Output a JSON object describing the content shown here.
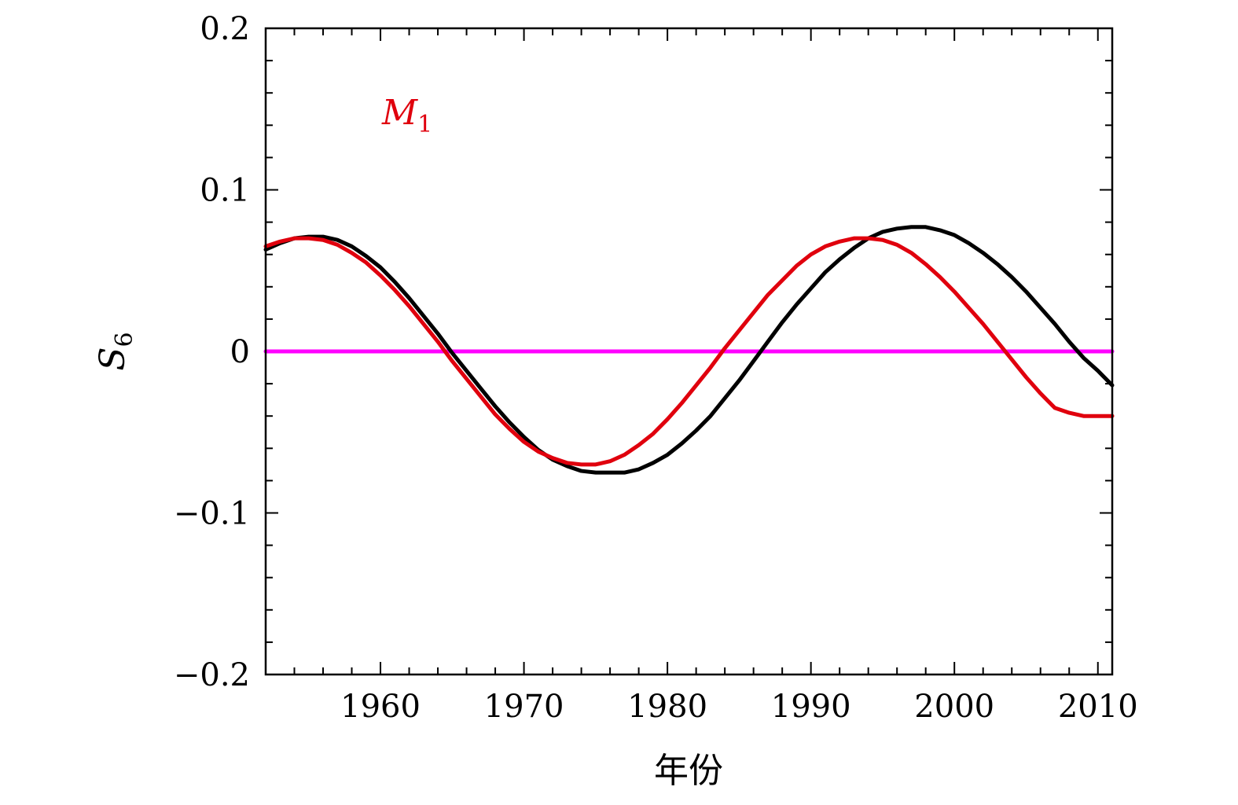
{
  "chart_data": {
    "type": "line",
    "title": "",
    "xlabel": "年份",
    "ylabel": {
      "main": "S",
      "sub": "6"
    },
    "xlim": [
      1952,
      2011
    ],
    "ylim": [
      -0.2,
      0.2
    ],
    "xticks": [
      1960,
      1970,
      1980,
      1990,
      2000,
      2010
    ],
    "yticks": [
      {
        "value": 0.2,
        "label": "0.2"
      },
      {
        "value": 0.1,
        "label": "0.1"
      },
      {
        "value": 0,
        "label": "0"
      },
      {
        "value": -0.1,
        "label": "−0.1"
      },
      {
        "value": -0.2,
        "label": "−0.2"
      }
    ],
    "annotation": {
      "text": "M",
      "sub": "1",
      "color": "#e0000d"
    },
    "series": [
      {
        "color": "#000000",
        "x": [
          1952,
          1953,
          1954,
          1955,
          1956,
          1957,
          1958,
          1959,
          1960,
          1961,
          1962,
          1963,
          1964,
          1965,
          1966,
          1967,
          1968,
          1969,
          1970,
          1971,
          1972,
          1973,
          1974,
          1975,
          1976,
          1977,
          1978,
          1979,
          1980,
          1981,
          1982,
          1983,
          1984,
          1985,
          1986,
          1987,
          1988,
          1989,
          1990,
          1991,
          1992,
          1993,
          1994,
          1995,
          1996,
          1997,
          1998,
          1999,
          2000,
          2001,
          2002,
          2003,
          2004,
          2005,
          2006,
          2007,
          2008,
          2009,
          2010,
          2011
        ],
        "y": [
          0.063,
          0.067,
          0.07,
          0.071,
          0.071,
          0.069,
          0.065,
          0.059,
          0.052,
          0.043,
          0.033,
          0.022,
          0.011,
          -0.001,
          -0.012,
          -0.023,
          -0.034,
          -0.044,
          -0.053,
          -0.061,
          -0.067,
          -0.071,
          -0.074,
          -0.075,
          -0.075,
          -0.075,
          -0.073,
          -0.069,
          -0.064,
          -0.057,
          -0.049,
          -0.04,
          -0.029,
          -0.018,
          -0.006,
          0.006,
          0.018,
          0.029,
          0.039,
          0.049,
          0.057,
          0.064,
          0.07,
          0.074,
          0.076,
          0.077,
          0.077,
          0.075,
          0.072,
          0.067,
          0.061,
          0.054,
          0.046,
          0.037,
          0.027,
          0.017,
          0.006,
          -0.004,
          -0.012,
          -0.021
        ]
      },
      {
        "color": "#e0000d",
        "x": [
          1952,
          1953,
          1954,
          1955,
          1956,
          1957,
          1958,
          1959,
          1960,
          1961,
          1962,
          1963,
          1964,
          1965,
          1966,
          1967,
          1968,
          1969,
          1970,
          1971,
          1972,
          1973,
          1974,
          1975,
          1976,
          1977,
          1978,
          1979,
          1980,
          1981,
          1982,
          1983,
          1984,
          1985,
          1986,
          1987,
          1988,
          1989,
          1990,
          1991,
          1992,
          1993,
          1994,
          1995,
          1996,
          1997,
          1998,
          1999,
          2000,
          2001,
          2002,
          2003,
          2004,
          2005,
          2006,
          2007,
          2008,
          2009,
          2010,
          2011
        ],
        "y": [
          0.065,
          0.068,
          0.07,
          0.07,
          0.069,
          0.066,
          0.061,
          0.055,
          0.047,
          0.038,
          0.028,
          0.017,
          0.006,
          -0.006,
          -0.017,
          -0.028,
          -0.039,
          -0.048,
          -0.056,
          -0.062,
          -0.066,
          -0.069,
          -0.07,
          -0.07,
          -0.068,
          -0.064,
          -0.058,
          -0.051,
          -0.042,
          -0.032,
          -0.021,
          -0.01,
          0.002,
          0.013,
          0.024,
          0.035,
          0.044,
          0.053,
          0.06,
          0.065,
          0.068,
          0.07,
          0.07,
          0.069,
          0.066,
          0.061,
          0.054,
          0.046,
          0.037,
          0.027,
          0.017,
          0.006,
          -0.005,
          -0.016,
          -0.026,
          -0.035,
          -0.038,
          -0.04,
          -0.04,
          -0.04
        ]
      },
      {
        "color": "#ff00ff",
        "x": [
          1952,
          2011
        ],
        "y": [
          0,
          0
        ]
      }
    ]
  }
}
